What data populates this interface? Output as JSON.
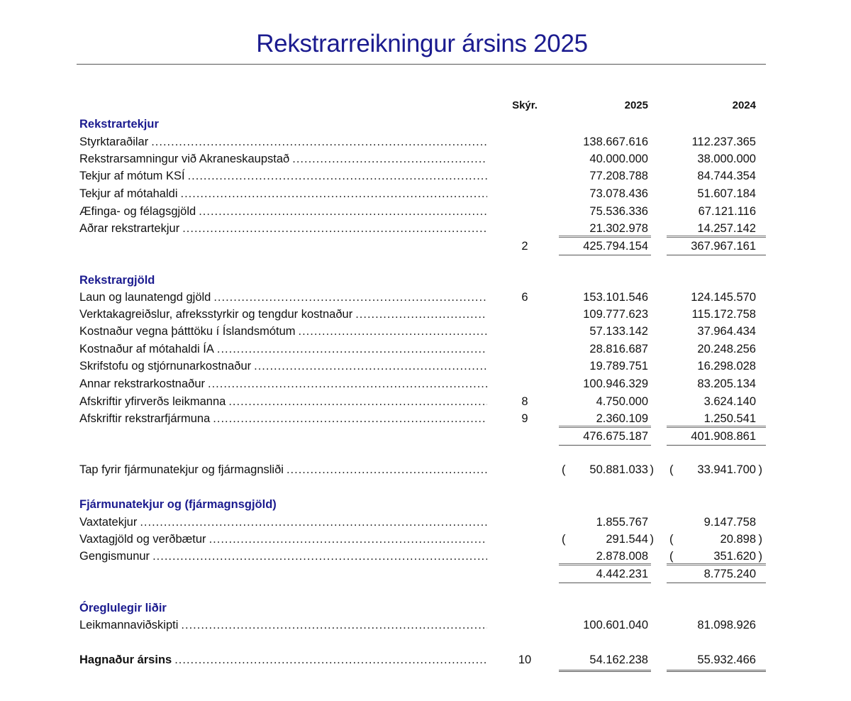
{
  "title": "Rekstrarreikningur ársins 2025",
  "columns": {
    "note": "Skýr.",
    "current": "2025",
    "prior": "2024"
  },
  "colors": {
    "heading": "#1b1b8f",
    "text": "#111111"
  },
  "sections": [
    {
      "heading": "Rekstrartekjur",
      "items": [
        {
          "label": "Styrktaraðilar",
          "note": "",
          "v2025": "138.667.616",
          "v2024": "112.237.365"
        },
        {
          "label": "Rekstrarsamningur við Akraneskaupstað",
          "note": "",
          "v2025": "40.000.000",
          "v2024": "38.000.000"
        },
        {
          "label": "Tekjur af mótum KSÍ",
          "note": "",
          "v2025": "77.208.788",
          "v2024": "84.744.354"
        },
        {
          "label": "Tekjur af mótahaldi",
          "note": "",
          "v2025": "73.078.436",
          "v2024": "51.607.184"
        },
        {
          "label": "Æfinga- og félagsgjöld",
          "note": "",
          "v2025": "75.536.336",
          "v2024": "67.121.116"
        },
        {
          "label": "Aðrar rekstrartekjur",
          "note": "",
          "v2025": "21.302.978",
          "v2024": "14.257.142"
        }
      ],
      "subtotal": {
        "note": "2",
        "v2025": "425.794.154",
        "v2024": "367.967.161"
      }
    },
    {
      "heading": "Rekstrargjöld",
      "items": [
        {
          "label": "Laun og launatengd gjöld",
          "note": "6",
          "v2025": "153.101.546",
          "v2024": "124.145.570"
        },
        {
          "label": "Verktakagreiðslur, afreksstyrkir og tengdur kostnaður",
          "note": "",
          "v2025": "109.777.623",
          "v2024": "115.172.758"
        },
        {
          "label": "Kostnaður vegna þátttöku í Íslandsmótum",
          "note": "",
          "v2025": "57.133.142",
          "v2024": "37.964.434"
        },
        {
          "label": "Kostnaður af mótahaldi ÍA",
          "note": "",
          "v2025": "28.816.687",
          "v2024": "20.248.256"
        },
        {
          "label": "Skrifstofu og stjórnunarkostnaður",
          "note": "",
          "v2025": "19.789.751",
          "v2024": "16.298.028"
        },
        {
          "label": "Annar rekstrarkostnaður",
          "note": "",
          "v2025": "100.946.329",
          "v2024": "83.205.134"
        },
        {
          "label": "Afskriftir yfirverðs leikmanna",
          "note": "8",
          "v2025": "4.750.000",
          "v2024": "3.624.140"
        },
        {
          "label": "Afskriftir rekstrarfjármuna",
          "note": "9",
          "v2025": "2.360.109",
          "v2024": "1.250.541"
        }
      ],
      "subtotal": {
        "note": "",
        "v2025": "476.675.187",
        "v2024": "401.908.861"
      }
    },
    {
      "heading": "",
      "items": [
        {
          "label": "Tap fyrir fjármunatekjur og fjármagnsliði",
          "note": "",
          "v2025": "50.881.033",
          "v2025_negative": true,
          "v2024": "33.941.700",
          "v2024_negative": true
        }
      ]
    },
    {
      "heading": "Fjármunatekjur og (fjármagnsgjöld)",
      "items": [
        {
          "label": "Vaxtatekjur",
          "note": "",
          "v2025": "1.855.767",
          "v2024": "9.147.758"
        },
        {
          "label": "Vaxtagjöld og verðbætur",
          "note": "",
          "v2025": "291.544",
          "v2025_negative": true,
          "v2024": "20.898",
          "v2024_negative": true
        },
        {
          "label": "Gengismunur",
          "note": "",
          "v2025": "2.878.008",
          "v2024": "351.620",
          "v2024_negative": true
        }
      ],
      "subtotal": {
        "note": "",
        "v2025": "4.442.231",
        "v2024": "8.775.240"
      }
    },
    {
      "heading": "Óreglulegir liðir",
      "items": [
        {
          "label": "Leikmannaviðskipti",
          "note": "",
          "v2025": "100.601.040",
          "v2024": "81.098.926"
        }
      ]
    }
  ],
  "total": {
    "label": "Hagnaður ársins",
    "note": "10",
    "v2025": "54.162.238",
    "v2024": "55.932.466"
  }
}
